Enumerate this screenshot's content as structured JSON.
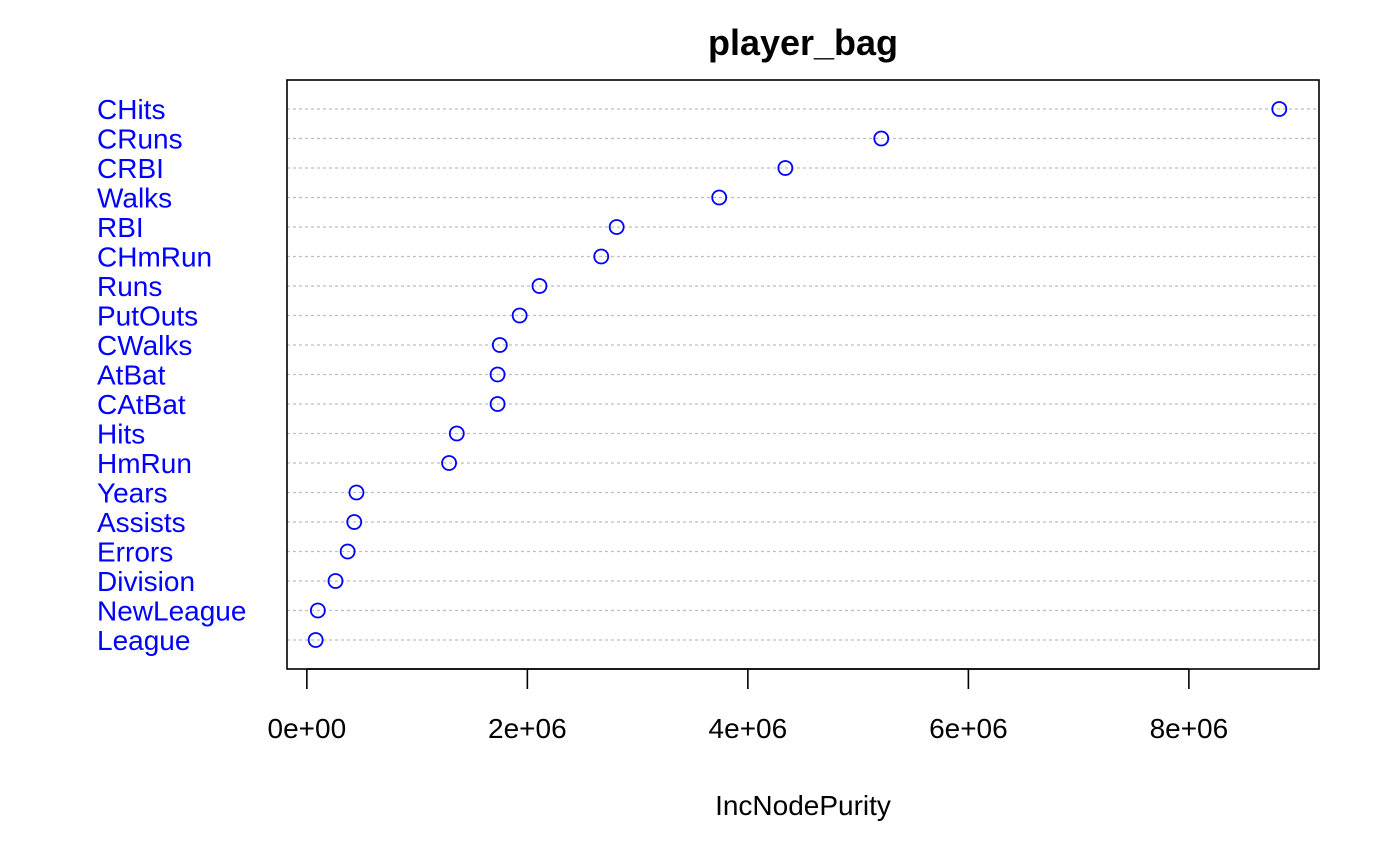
{
  "chart_data": {
    "type": "scatter",
    "title": "player_bag",
    "xlabel": "IncNodePurity",
    "ylabel": "",
    "xlim": [
      -180000,
      9180000
    ],
    "x_ticks": [
      0,
      2000000,
      4000000,
      6000000,
      8000000
    ],
    "x_tick_labels": [
      "0e+00",
      "2e+06",
      "4e+06",
      "6e+06",
      "8e+06"
    ],
    "grid": "dotted horizontal",
    "marker": "open circle",
    "categories": [
      "CHits",
      "CRuns",
      "CRBI",
      "Walks",
      "RBI",
      "CHmRun",
      "Runs",
      "PutOuts",
      "CWalks",
      "AtBat",
      "CAtBat",
      "Hits",
      "HmRun",
      "Years",
      "Assists",
      "Errors",
      "Division",
      "NewLeague",
      "League"
    ],
    "values": [
      8820000,
      5210000,
      4340000,
      3740000,
      2810000,
      2670000,
      2110000,
      1930000,
      1750000,
      1730000,
      1730000,
      1360000,
      1290000,
      450000,
      430000,
      370000,
      260000,
      100000,
      80000
    ],
    "colors": {
      "points": "#0000FF",
      "labels": "#0000FF",
      "grid": "#BEBEBE",
      "axes": "#000000"
    }
  }
}
